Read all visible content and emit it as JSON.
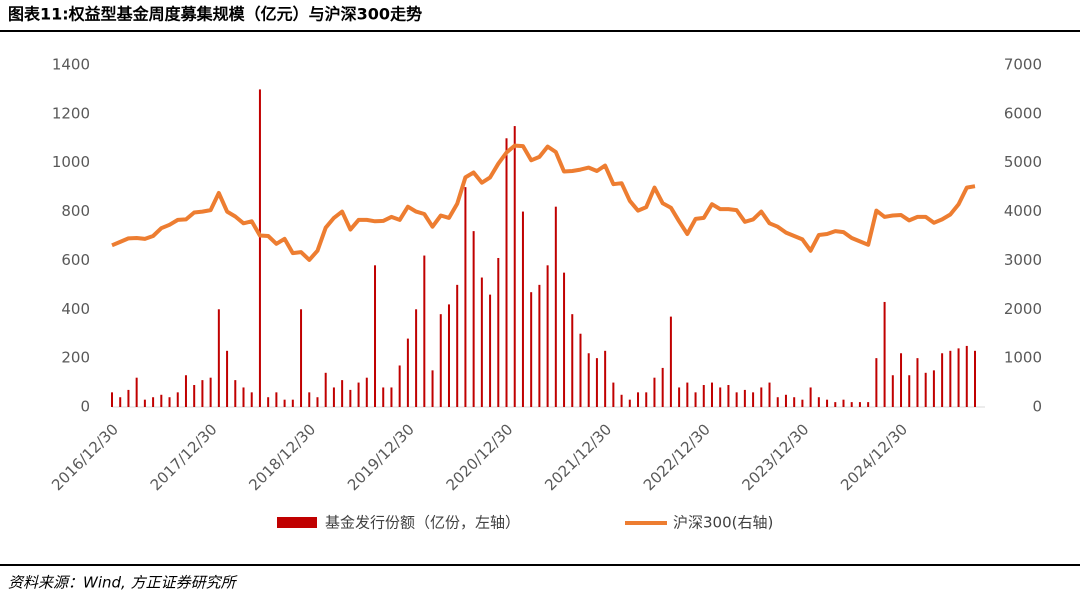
{
  "chart_data": {
    "type": "bar_line",
    "title": "图表11:权益型基金周度募集规模（亿元）与沪深300走势",
    "source": "资料来源：Wind, 方正证券研究所",
    "categories": [
      "2016/12/30",
      null,
      null,
      null,
      null,
      null,
      null,
      null,
      null,
      null,
      null,
      null,
      "2017/12/30",
      null,
      null,
      null,
      null,
      null,
      null,
      null,
      null,
      null,
      null,
      null,
      "2018/12/30",
      null,
      null,
      null,
      null,
      null,
      null,
      null,
      null,
      null,
      null,
      null,
      "2019/12/30",
      null,
      null,
      null,
      null,
      null,
      null,
      null,
      null,
      null,
      null,
      null,
      "2020/12/30",
      null,
      null,
      null,
      null,
      null,
      null,
      null,
      null,
      null,
      null,
      null,
      "2021/12/30",
      null,
      null,
      null,
      null,
      null,
      null,
      null,
      null,
      null,
      null,
      null,
      "2022/12/30",
      null,
      null,
      null,
      null,
      null,
      null,
      null,
      null,
      null,
      null,
      null,
      "2023/12/30",
      null,
      null,
      null,
      null,
      null,
      null,
      null,
      null,
      null,
      null,
      null,
      "2024/12/30",
      null,
      null,
      null,
      null,
      null,
      null,
      null,
      null,
      null
    ],
    "series": [
      {
        "name": "基金发行份额（亿份，左轴）",
        "color": "#c00000",
        "kind": "bar",
        "axis": "y",
        "values": [
          60,
          40,
          70,
          120,
          30,
          40,
          50,
          40,
          60,
          130,
          90,
          110,
          120,
          400,
          230,
          110,
          80,
          60,
          1300,
          40,
          60,
          30,
          30,
          400,
          60,
          40,
          140,
          80,
          110,
          70,
          100,
          120,
          580,
          80,
          80,
          170,
          280,
          400,
          620,
          150,
          380,
          420,
          500,
          900,
          720,
          530,
          460,
          610,
          1100,
          1150,
          800,
          470,
          500,
          580,
          820,
          550,
          380,
          300,
          220,
          200,
          230,
          100,
          50,
          30,
          60,
          60,
          120,
          160,
          370,
          80,
          100,
          60,
          90,
          100,
          80,
          90,
          60,
          70,
          60,
          80,
          100,
          40,
          50,
          40,
          30,
          80,
          40,
          30,
          20,
          30,
          20,
          20,
          20,
          200,
          430,
          130,
          220,
          130,
          200,
          140,
          150,
          220,
          230,
          240,
          250,
          230
        ]
      },
      {
        "name": "沪深300(右轴)",
        "color": "#ed7d31",
        "kind": "line",
        "axis": "y2",
        "values": [
          3310,
          3380,
          3450,
          3460,
          3440,
          3500,
          3660,
          3730,
          3830,
          3840,
          3980,
          4000,
          4030,
          4380,
          4000,
          3900,
          3760,
          3800,
          3510,
          3500,
          3340,
          3440,
          3150,
          3170,
          3010,
          3200,
          3670,
          3870,
          4000,
          3630,
          3830,
          3830,
          3800,
          3810,
          3890,
          3830,
          4100,
          4000,
          3950,
          3690,
          3920,
          3870,
          4160,
          4700,
          4800,
          4590,
          4700,
          4980,
          5210,
          5350,
          5340,
          5050,
          5120,
          5330,
          5220,
          4820,
          4830,
          4860,
          4900,
          4830,
          4940,
          4560,
          4580,
          4220,
          4020,
          4090,
          4490,
          4170,
          4080,
          3800,
          3540,
          3850,
          3870,
          4150,
          4050,
          4050,
          4030,
          3790,
          3840,
          4000,
          3760,
          3690,
          3570,
          3500,
          3430,
          3200,
          3520,
          3540,
          3600,
          3580,
          3460,
          3390,
          3320,
          4020,
          3890,
          3920,
          3930,
          3820,
          3890,
          3890,
          3770,
          3840,
          3940,
          4150,
          4490,
          4520
        ]
      }
    ],
    "ylim": [
      0,
      1400
    ],
    "yticks": [
      0,
      200,
      400,
      600,
      800,
      1000,
      1200,
      1400
    ],
    "y2lim": [
      0,
      7000
    ],
    "y2ticks": [
      0,
      1000,
      2000,
      3000,
      4000,
      5000,
      6000,
      7000
    ]
  }
}
